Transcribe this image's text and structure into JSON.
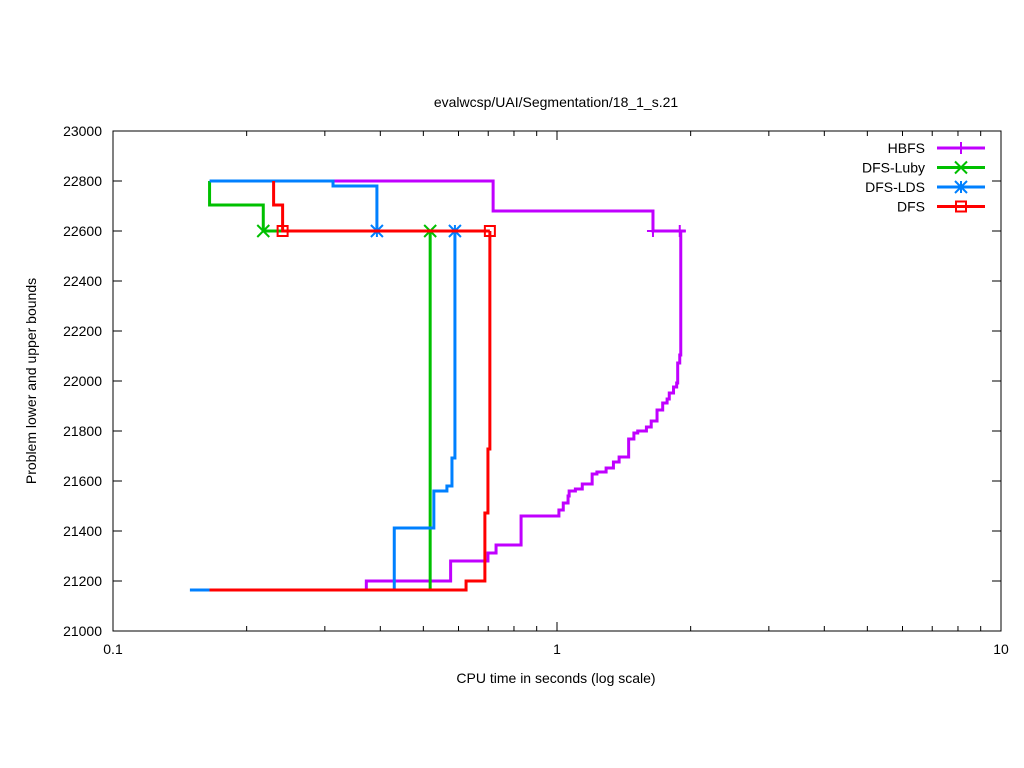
{
  "chart_data": {
    "type": "line",
    "title": "evalwcsp/UAI/Segmentation/18_1_s.21",
    "xlabel": "CPU time in seconds (log scale)",
    "ylabel": "Problem lower and upper bounds",
    "xscale": "log",
    "xlim": [
      0.1,
      10
    ],
    "ylim": [
      21000,
      23000
    ],
    "xticks": [
      0.1,
      1,
      10
    ],
    "xtick_labels": [
      "0.1",
      "1",
      "10"
    ],
    "yticks": [
      21000,
      21200,
      21400,
      21600,
      21800,
      22000,
      22200,
      22400,
      22600,
      22800,
      23000
    ],
    "ytick_labels": [
      "21000",
      "21200",
      "21400",
      "21600",
      "21800",
      "22000",
      "22200",
      "22400",
      "22600",
      "22800",
      "23000"
    ],
    "grid": false,
    "legend_position": "top-right",
    "line_style": "steps",
    "series": [
      {
        "name": "HBFS",
        "color": "#c000ff",
        "marker": "plus",
        "upper": [
          [
            0.313,
            22800
          ],
          [
            0.718,
            22680
          ],
          [
            1.645,
            22600
          ],
          [
            1.95,
            22600
          ]
        ],
        "lower": [
          [
            0.372,
            21164
          ],
          [
            0.372,
            21200
          ],
          [
            0.576,
            21280
          ],
          [
            0.699,
            21312
          ],
          [
            0.729,
            21344
          ],
          [
            0.83,
            21460
          ],
          [
            1.01,
            21484
          ],
          [
            1.033,
            21512
          ],
          [
            1.059,
            21540
          ],
          [
            1.065,
            21560
          ],
          [
            1.1,
            21568
          ],
          [
            1.14,
            21588
          ],
          [
            1.2,
            21628
          ],
          [
            1.23,
            21636
          ],
          [
            1.29,
            21652
          ],
          [
            1.34,
            21676
          ],
          [
            1.38,
            21696
          ],
          [
            1.45,
            21768
          ],
          [
            1.49,
            21792
          ],
          [
            1.52,
            21800
          ],
          [
            1.59,
            21816
          ],
          [
            1.63,
            21840
          ],
          [
            1.68,
            21884
          ],
          [
            1.73,
            21912
          ],
          [
            1.77,
            21928
          ],
          [
            1.79,
            21952
          ],
          [
            1.83,
            21976
          ],
          [
            1.86,
            21992
          ],
          [
            1.87,
            22072
          ],
          [
            1.89,
            22104
          ],
          [
            1.9,
            22204
          ],
          [
            1.9,
            22600
          ]
        ],
        "markers": [
          [
            1.645,
            22600
          ],
          [
            1.89,
            22600
          ]
        ]
      },
      {
        "name": "DFS-Luby",
        "color": "#00c000",
        "marker": "cross",
        "upper": [
          [
            0.165,
            22800
          ],
          [
            0.165,
            22704
          ],
          [
            0.218,
            22600
          ],
          [
            0.518,
            22600
          ],
          [
            0.518,
            21164
          ]
        ],
        "lower": [
          [
            0.165,
            21164
          ],
          [
            0.518,
            21164
          ]
        ],
        "markers": [
          [
            0.218,
            22600
          ],
          [
            0.518,
            22600
          ]
        ]
      },
      {
        "name": "DFS-LDS",
        "color": "#0080ff",
        "marker": "star",
        "upper": [
          [
            0.165,
            22800
          ],
          [
            0.313,
            22780
          ],
          [
            0.393,
            22600
          ],
          [
            0.589,
            22600
          ]
        ],
        "lower": [
          [
            0.149,
            21164
          ],
          [
            0.43,
            21412
          ],
          [
            0.528,
            21560
          ],
          [
            0.565,
            21580
          ],
          [
            0.58,
            21692
          ],
          [
            0.589,
            22600
          ]
        ],
        "markers": [
          [
            0.393,
            22600
          ],
          [
            0.589,
            22600
          ]
        ]
      },
      {
        "name": "DFS",
        "color": "#ff0000",
        "marker": "square",
        "upper": [
          [
            0.23,
            22800
          ],
          [
            0.23,
            22704
          ],
          [
            0.241,
            22600
          ],
          [
            0.706,
            22600
          ]
        ],
        "lower": [
          [
            0.165,
            21164
          ],
          [
            0.624,
            21200
          ],
          [
            0.688,
            21472
          ],
          [
            0.699,
            21728
          ],
          [
            0.706,
            22600
          ]
        ],
        "markers": [
          [
            0.241,
            22600
          ],
          [
            0.706,
            22600
          ]
        ]
      }
    ]
  }
}
